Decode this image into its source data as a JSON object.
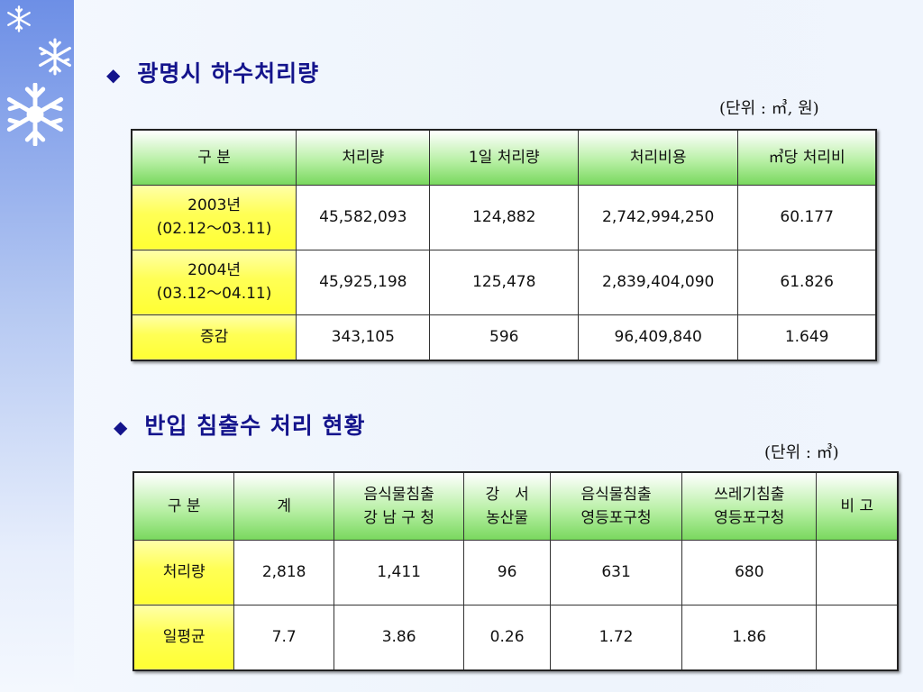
{
  "section1": {
    "bullet": "◆",
    "title": "광명시 하수처리량",
    "unit": "(단위 : ㎥, 원)",
    "headers": [
      "구 분",
      "처리량",
      "1일 처리량",
      "처리비용",
      "㎥당 처리비"
    ],
    "rows": [
      {
        "label1": "2003년",
        "label2": "(02.12～03.11)",
        "values": [
          "45,582,093",
          "124,882",
          "2,742,994,250",
          "60.177"
        ]
      },
      {
        "label1": "2004년",
        "label2": "(03.12～04.11)",
        "values": [
          "45,925,198",
          "125,478",
          "2,839,404,090",
          "61.826"
        ]
      },
      {
        "label1": "증감",
        "label2": "",
        "values": [
          "343,105",
          "596",
          "96,409,840",
          "1.649"
        ]
      }
    ]
  },
  "section2": {
    "bullet": "◆",
    "title": "반입 침출수 처리 현황",
    "unit": "(단위 : ㎥)",
    "headers": [
      {
        "l1": "구 분",
        "l2": ""
      },
      {
        "l1": "계",
        "l2": ""
      },
      {
        "l1": "음식물침출",
        "l2": "강 남 구 청"
      },
      {
        "l1": "강　서",
        "l2": "농산물"
      },
      {
        "l1": "음식물침출",
        "l2": "영등포구청"
      },
      {
        "l1": "쓰레기침출",
        "l2": "영등포구청"
      },
      {
        "l1": "비 고",
        "l2": ""
      }
    ],
    "rows": [
      {
        "label": "처리량",
        "values": [
          "2,818",
          "1,411",
          "96",
          "631",
          "680",
          ""
        ]
      },
      {
        "label": "일평균",
        "values": [
          "7.7",
          "3.86",
          "0.26",
          "1.72",
          "1.86",
          ""
        ]
      }
    ]
  },
  "decor": {
    "sidebar_color": "#6d8fe6",
    "header_color": "#79d85e",
    "row_header_color": "#ffff33",
    "title_color": "#14148c",
    "icons": [
      "snowflake-icon",
      "snowflake-icon",
      "snowflake-icon"
    ]
  }
}
